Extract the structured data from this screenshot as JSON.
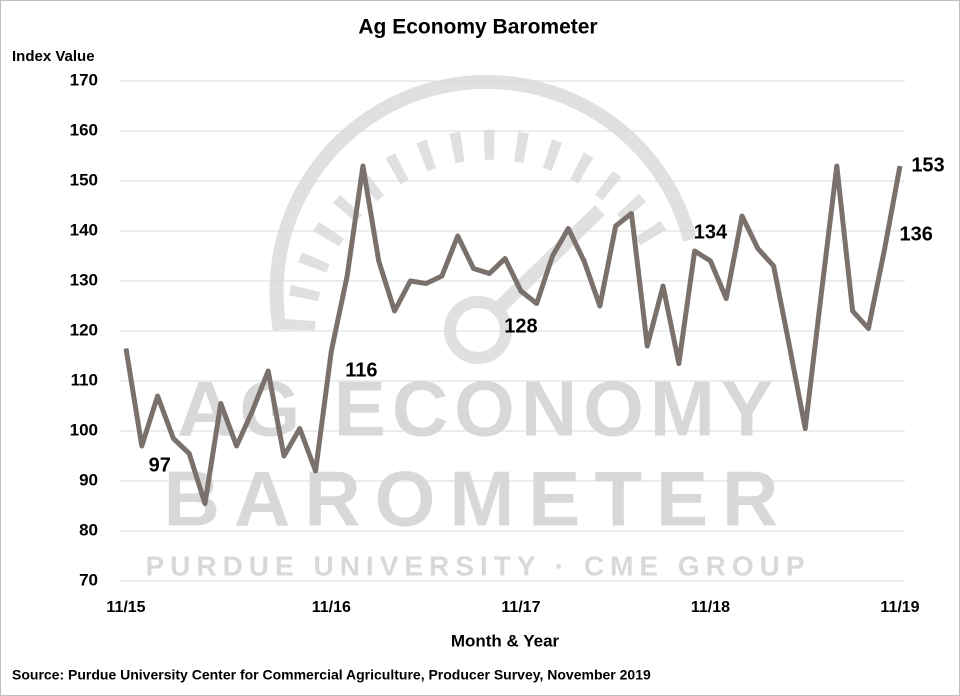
{
  "chart_data": {
    "type": "line",
    "title": "Ag Economy Barometer",
    "y_label": "Index Value",
    "x_label": "Month & Year",
    "source": "Source: Purdue University Center for Commercial Agriculture, Producer Survey, November 2019",
    "watermark": [
      "AG ECONOMY",
      "BAROMETER",
      "PURDUE UNIVERSITY  ·  CME GROUP"
    ],
    "categories": [
      "11/15",
      null,
      null,
      null,
      null,
      null,
      null,
      null,
      null,
      null,
      null,
      null,
      null,
      "11/16",
      null,
      null,
      null,
      null,
      null,
      null,
      null,
      null,
      null,
      null,
      null,
      "11/17",
      null,
      null,
      null,
      null,
      null,
      null,
      null,
      null,
      null,
      null,
      null,
      "11/18",
      null,
      null,
      null,
      null,
      null,
      null,
      null,
      null,
      null,
      null,
      null,
      "11/19"
    ],
    "series": [
      {
        "name": "Index Value",
        "color": "#7a716c",
        "values": [
          116.5,
          97,
          107,
          98.5,
          95.5,
          85.5,
          105.5,
          97,
          104,
          112,
          95,
          100.5,
          92,
          116,
          131,
          153,
          134,
          124,
          130,
          129.5,
          131,
          139,
          132.5,
          131.5,
          134.5,
          128,
          125.5,
          135,
          140.5,
          134,
          125,
          141,
          143.5,
          117,
          129,
          113.5,
          136,
          134,
          126.5,
          143,
          136.5,
          133,
          117,
          100.5,
          127,
          153,
          124,
          120.5,
          136,
          153
        ],
        "value_labels": [
          null,
          "97",
          null,
          null,
          null,
          null,
          null,
          null,
          null,
          null,
          null,
          null,
          null,
          "116",
          null,
          null,
          null,
          null,
          null,
          null,
          null,
          null,
          null,
          null,
          null,
          "128",
          null,
          null,
          null,
          null,
          null,
          null,
          null,
          null,
          null,
          null,
          null,
          "134",
          null,
          null,
          null,
          null,
          null,
          null,
          null,
          null,
          null,
          null,
          "136",
          "153"
        ]
      }
    ],
    "ylim": [
      70,
      170
    ],
    "yticks": [
      70,
      80,
      90,
      100,
      110,
      120,
      130,
      140,
      150,
      160,
      170
    ],
    "grid": true
  }
}
